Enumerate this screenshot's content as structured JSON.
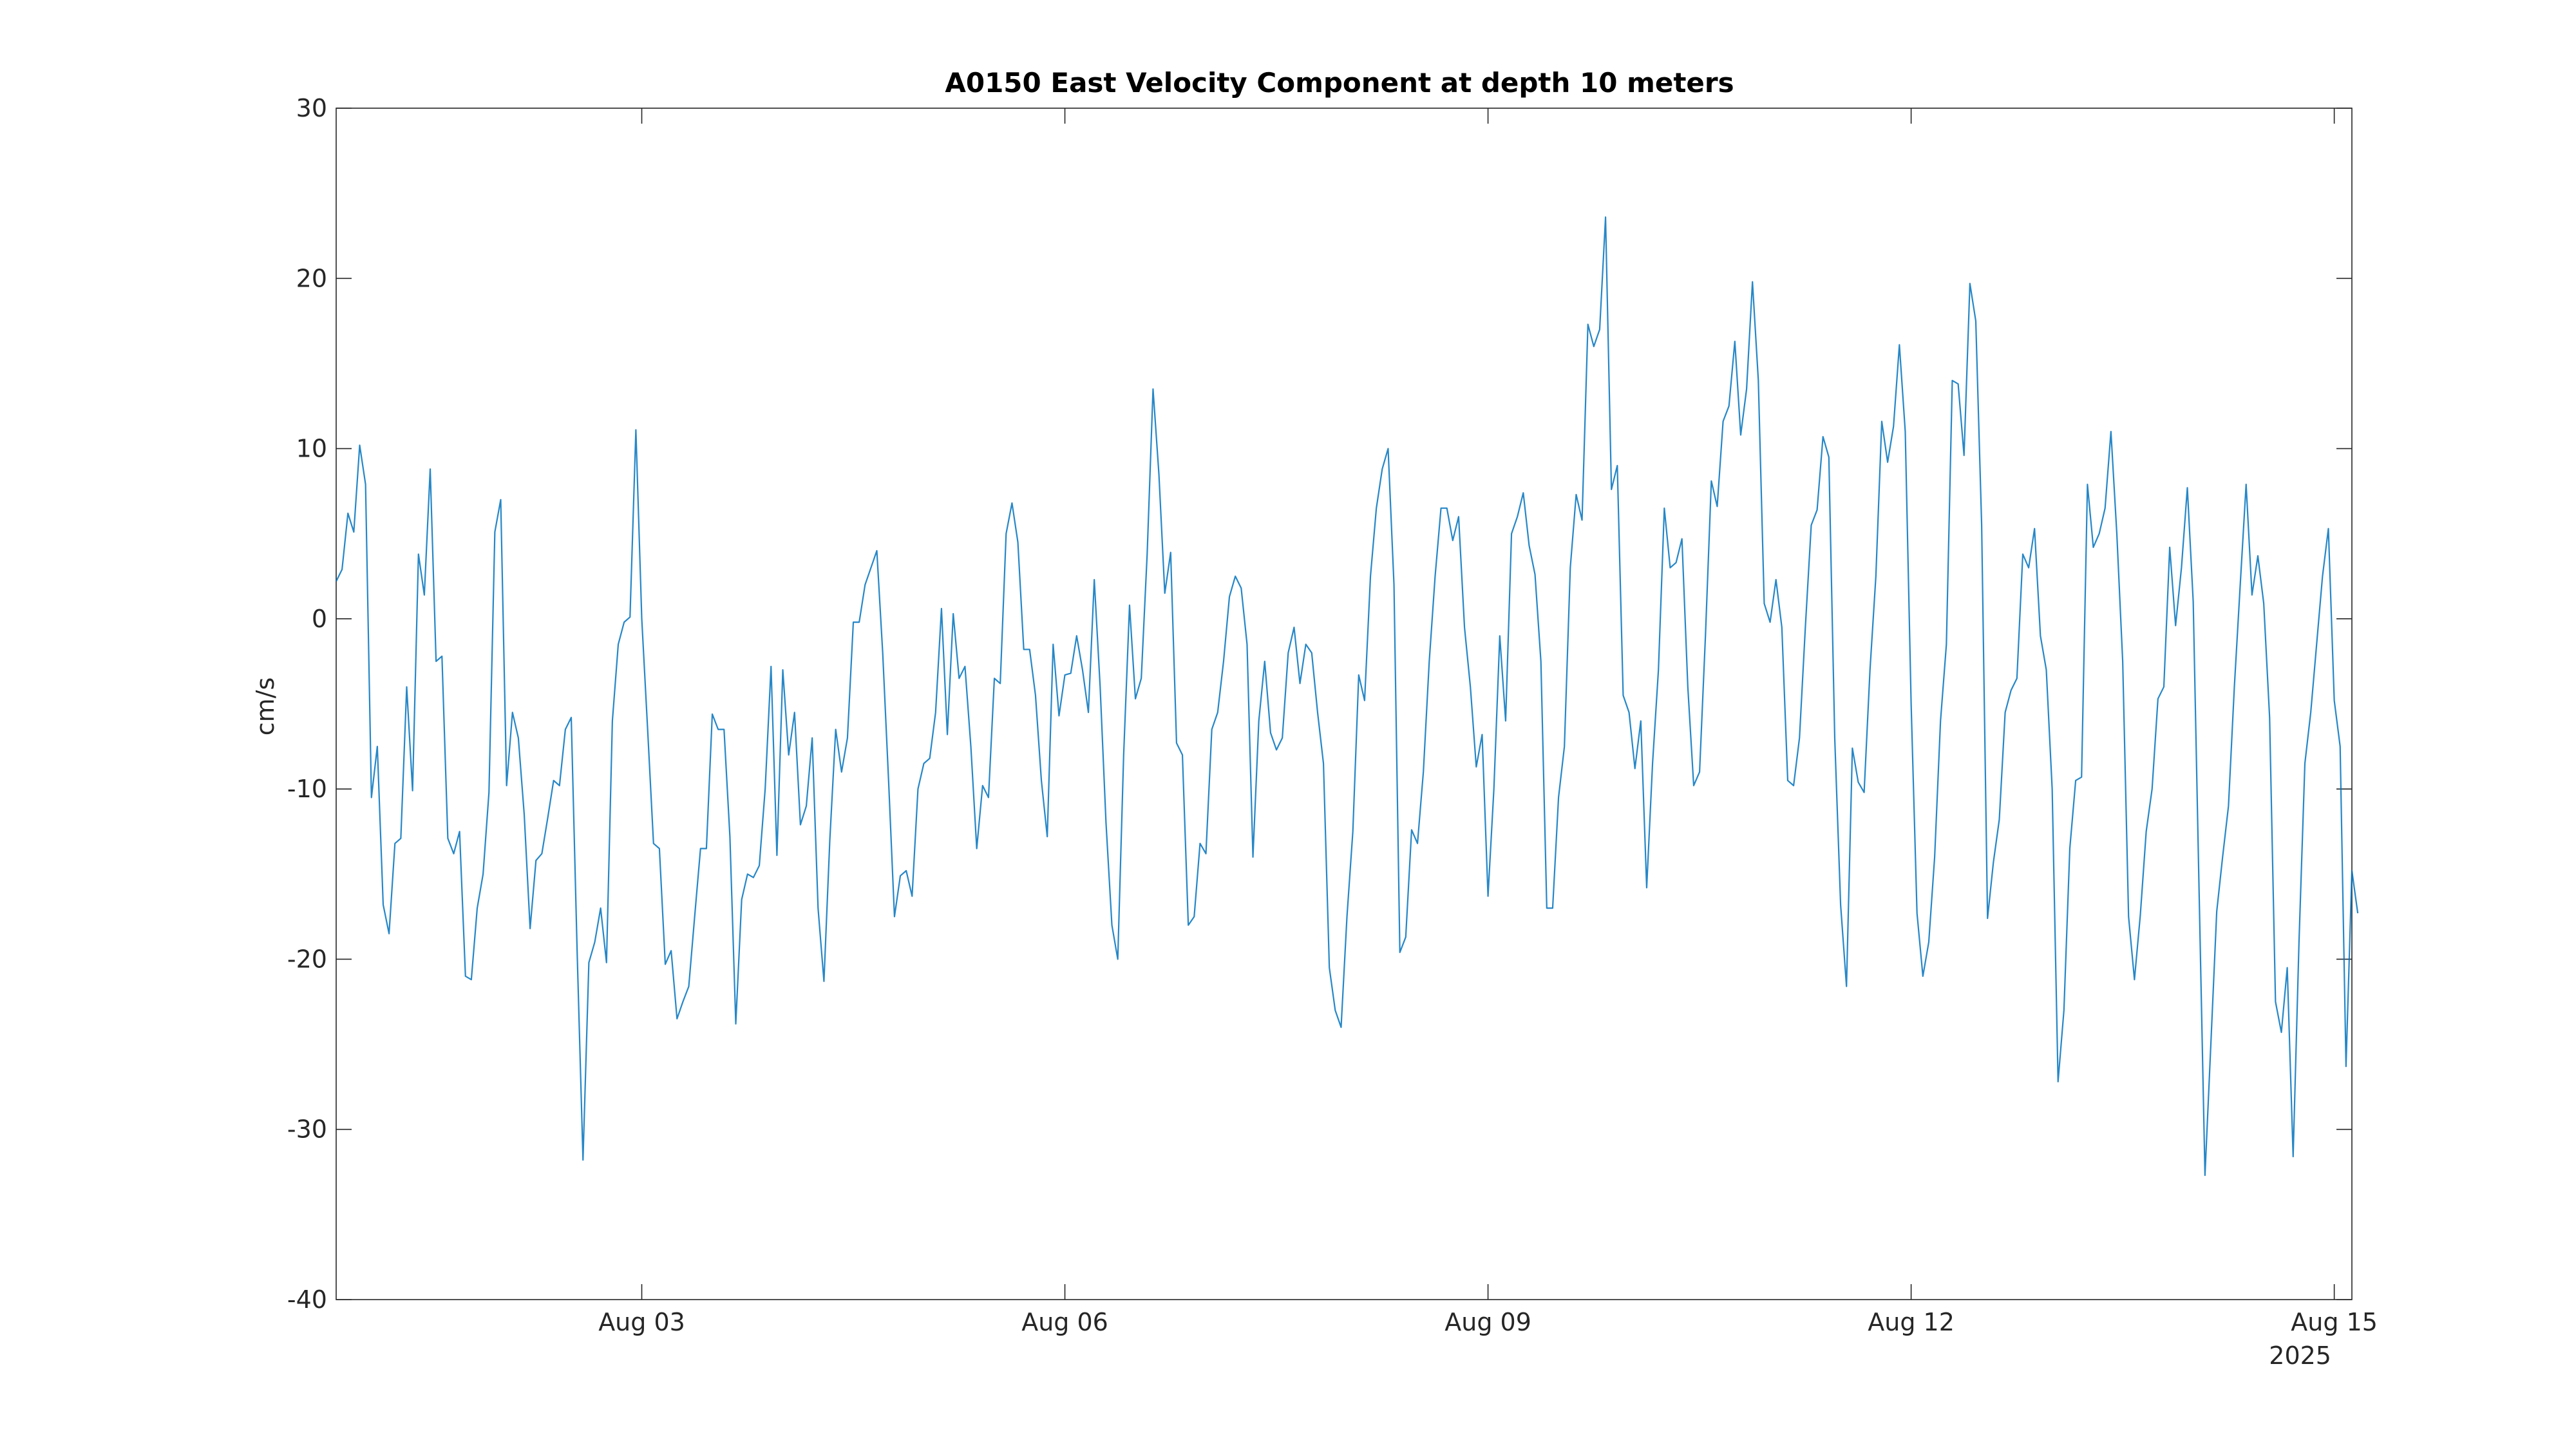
{
  "chart_data": {
    "type": "line",
    "title": "A0150 East Velocity Component at depth 10 meters",
    "ylabel": "cm/s",
    "xlabel": "",
    "ylim": [
      -40,
      30
    ],
    "xlim": [
      "2025-07-31T20:00",
      "2025-08-15T03:00"
    ],
    "yticks": [
      -40,
      -30,
      -20,
      -10,
      0,
      10,
      20,
      30
    ],
    "xticks": [
      {
        "date": "2025-08-03T00:00",
        "label": "Aug 03"
      },
      {
        "date": "2025-08-06T00:00",
        "label": "Aug 06"
      },
      {
        "date": "2025-08-09T00:00",
        "label": "Aug 09"
      },
      {
        "date": "2025-08-12T00:00",
        "label": "Aug 12"
      },
      {
        "date": "2025-08-15T00:00",
        "label": "Aug 15"
      }
    ],
    "year_label": "2025",
    "grid": false,
    "colors": {
      "line": "#0072BD",
      "axes": "#262626"
    },
    "series": [
      {
        "x_start": "2025-07-31T20:00",
        "x_step_hours": 1,
        "values": [
          2.2,
          2.9,
          6.2,
          5.1,
          10.2,
          7.9,
          -10.5,
          -7.5,
          -16.8,
          -18.5,
          -13.2,
          -12.9,
          -4.0,
          -10.1,
          3.8,
          1.4,
          8.8,
          -2.5,
          -2.2,
          -12.9,
          -13.8,
          -12.5,
          -21.0,
          -21.2,
          -17.0,
          -15.0,
          -10.2,
          5.1,
          7.0,
          -9.8,
          -5.5,
          -7.0,
          -11.5,
          -18.2,
          -14.2,
          -13.8,
          -11.7,
          -9.5,
          -9.8,
          -6.5,
          -5.8,
          -19.5,
          -31.8,
          -20.2,
          -19.0,
          -17.0,
          -20.2,
          -6.0,
          -1.5,
          -0.2,
          0.1,
          11.1,
          0.0,
          -6.5,
          -13.2,
          -13.5,
          -20.3,
          -19.5,
          -23.5,
          -22.5,
          -21.6,
          -17.5,
          -13.5,
          -13.5,
          -5.6,
          -6.5,
          -6.5,
          -12.8,
          -23.8,
          -16.5,
          -15.0,
          -15.2,
          -14.5,
          -10.0,
          -2.8,
          -13.9,
          -3.0,
          -8.0,
          -5.5,
          -12.1,
          -11.0,
          -7.0,
          -17.0,
          -21.3,
          -13.0,
          -6.5,
          -9.0,
          -7.0,
          -0.2,
          -0.2,
          2.0,
          3.0,
          4.0,
          -2.0,
          -9.5,
          -17.5,
          -15.1,
          -14.8,
          -16.3,
          -10.0,
          -8.5,
          -8.2,
          -5.5,
          0.6,
          -6.8,
          0.3,
          -3.5,
          -2.8,
          -7.5,
          -13.5,
          -9.8,
          -10.5,
          -3.5,
          -3.8,
          5.0,
          6.8,
          4.5,
          -1.8,
          -1.8,
          -4.5,
          -9.5,
          -12.8,
          -1.5,
          -5.7,
          -3.3,
          -3.2,
          -1.0,
          -3.0,
          -5.5,
          2.3,
          -4.0,
          -12.0,
          -18.0,
          -20.0,
          -8.0,
          0.8,
          -4.7,
          -3.5,
          3.8,
          13.5,
          8.5,
          1.5,
          3.9,
          -7.3,
          -8.0,
          -18.0,
          -17.5,
          -13.2,
          -13.8,
          -6.5,
          -5.5,
          -2.5,
          1.3,
          2.5,
          1.8,
          -1.5,
          -14.0,
          -6.0,
          -2.5,
          -6.7,
          -7.7,
          -7.0,
          -2.0,
          -0.5,
          -3.8,
          -1.5,
          -2.0,
          -5.5,
          -8.5,
          -20.5,
          -23.0,
          -24.0,
          -17.5,
          -12.5,
          -3.3,
          -4.8,
          2.5,
          6.5,
          8.8,
          10.0,
          2.0,
          -19.6,
          -18.7,
          -12.4,
          -13.2,
          -9.0,
          -2.5,
          2.5,
          6.5,
          6.5,
          4.6,
          6.0,
          -0.5,
          -4.0,
          -8.7,
          -6.8,
          -16.3,
          -10.0,
          -1.0,
          -6.0,
          5.0,
          6.0,
          7.4,
          4.3,
          2.6,
          -2.5,
          -17.0,
          -17.0,
          -10.5,
          -7.5,
          3.0,
          7.3,
          5.8,
          17.3,
          16.0,
          17.0,
          23.6,
          7.6,
          9.0,
          -4.5,
          -5.5,
          -8.8,
          -6.0,
          -15.8,
          -8.5,
          -3.0,
          6.5,
          3.0,
          3.3,
          4.7,
          -4.0,
          -9.8,
          -9.0,
          -1.0,
          8.1,
          6.6,
          11.6,
          12.5,
          16.3,
          10.8,
          13.5,
          19.8,
          14.0,
          0.9,
          -0.2,
          2.3,
          -0.5,
          -9.5,
          -9.8,
          -7.0,
          -0.5,
          5.5,
          6.4,
          10.7,
          9.5,
          -7.0,
          -16.8,
          -21.6,
          -7.6,
          -9.6,
          -10.2,
          -3.0,
          2.5,
          11.6,
          9.2,
          11.3,
          16.1,
          11.0,
          -5.0,
          -17.3,
          -21.0,
          -19.0,
          -14.0,
          -6.0,
          -1.5,
          14.0,
          13.8,
          9.6,
          19.7,
          17.5,
          5.5,
          -17.6,
          -14.3,
          -11.8,
          -5.5,
          -4.2,
          -3.5,
          3.8,
          3.0,
          5.3,
          -1.0,
          -3.0,
          -10.0,
          -27.2,
          -23.0,
          -13.5,
          -9.5,
          -9.3,
          7.9,
          4.2,
          5.0,
          6.5,
          11.0,
          5.0,
          -2.5,
          -17.5,
          -21.2,
          -17.4,
          -12.5,
          -10.0,
          -4.7,
          -4.0,
          4.2,
          -0.4,
          3.0,
          7.7,
          1.0,
          -16.0,
          -32.7,
          -25.0,
          -17.2,
          -14.0,
          -11.0,
          -4.0,
          2.0,
          7.9,
          1.4,
          3.7,
          0.9,
          -5.8,
          -22.5,
          -24.3,
          -20.5,
          -31.6,
          -19.0,
          -8.5,
          -5.5,
          -1.5,
          2.5,
          5.3,
          -4.8,
          -7.5,
          -26.3,
          -14.8,
          -17.3
        ]
      }
    ]
  }
}
